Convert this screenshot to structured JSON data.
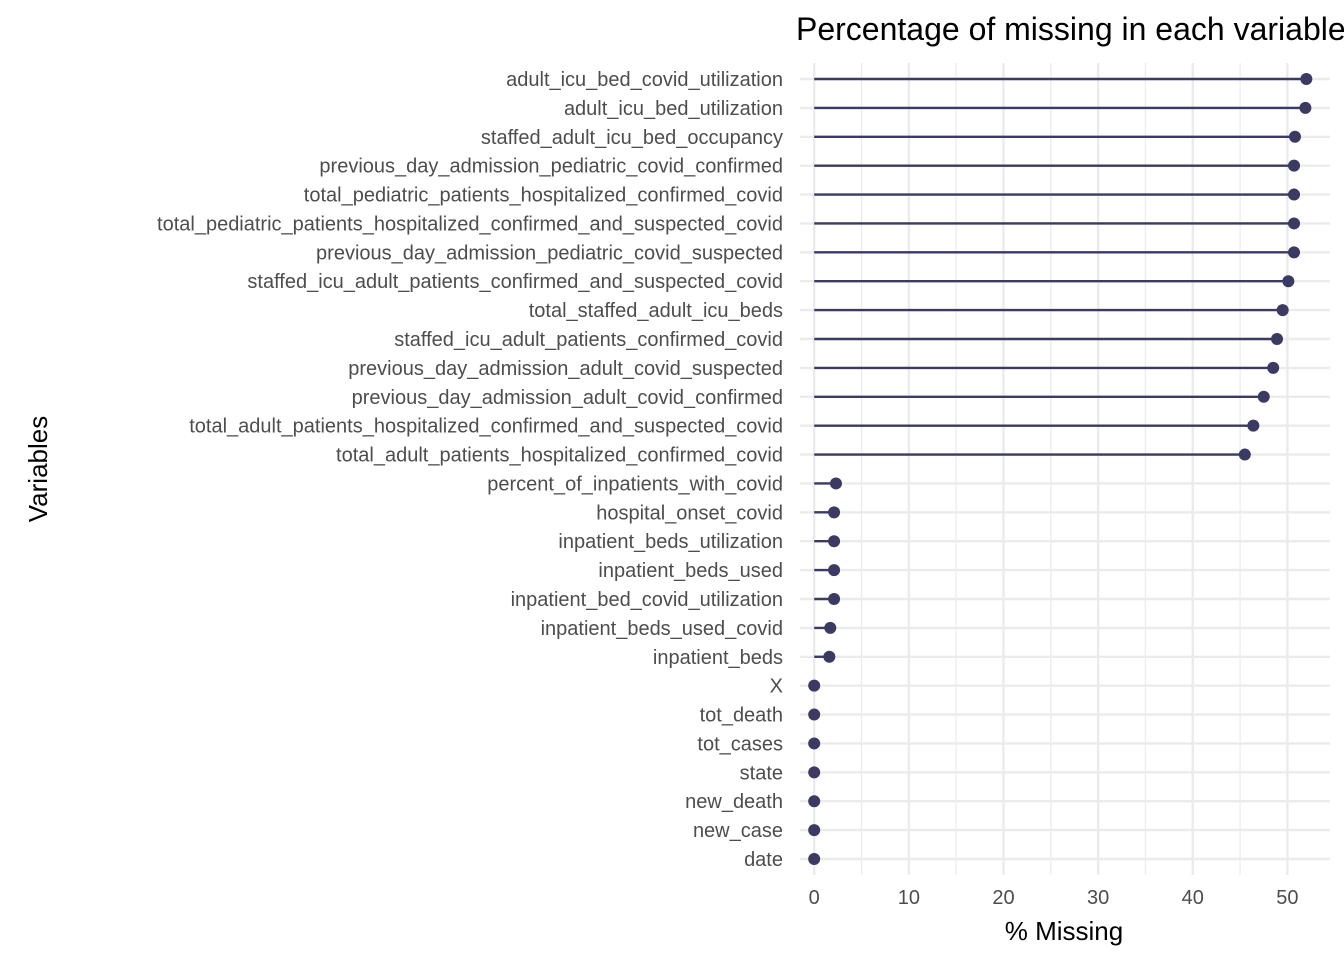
{
  "chart_data": {
    "type": "lollipop",
    "title": "Percentage of missing in each variable",
    "xlabel": "% Missing",
    "ylabel": "Variables",
    "xlim": [
      -1.5,
      54.5
    ],
    "x_ticks": [
      0,
      10,
      20,
      30,
      40,
      50
    ],
    "grid": true,
    "colors": {
      "mark": "#3a3a62",
      "grid": "#ebebeb"
    },
    "categories": [
      "adult_icu_bed_covid_utilization",
      "adult_icu_bed_utilization",
      "staffed_adult_icu_bed_occupancy",
      "previous_day_admission_pediatric_covid_confirmed",
      "total_pediatric_patients_hospitalized_confirmed_covid",
      "total_pediatric_patients_hospitalized_confirmed_and_suspected_covid",
      "previous_day_admission_pediatric_covid_suspected",
      "staffed_icu_adult_patients_confirmed_and_suspected_covid",
      "total_staffed_adult_icu_beds",
      "staffed_icu_adult_patients_confirmed_covid",
      "previous_day_admission_adult_covid_suspected",
      "previous_day_admission_adult_covid_confirmed",
      "total_adult_patients_hospitalized_confirmed_and_suspected_covid",
      "total_adult_patients_hospitalized_confirmed_covid",
      "percent_of_inpatients_with_covid",
      "hospital_onset_covid",
      "inpatient_beds_utilization",
      "inpatient_beds_used",
      "inpatient_bed_covid_utilization",
      "inpatient_beds_used_covid",
      "inpatient_beds",
      "X",
      "tot_death",
      "tot_cases",
      "state",
      "new_death",
      "new_case",
      "date"
    ],
    "values": [
      52.0,
      51.9,
      50.8,
      50.7,
      50.7,
      50.7,
      50.7,
      50.1,
      49.5,
      48.9,
      48.5,
      47.5,
      46.4,
      45.5,
      2.3,
      2.1,
      2.1,
      2.1,
      2.1,
      1.7,
      1.6,
      0.0,
      0.0,
      0.0,
      0.0,
      0.0,
      0.0,
      0.0
    ]
  }
}
